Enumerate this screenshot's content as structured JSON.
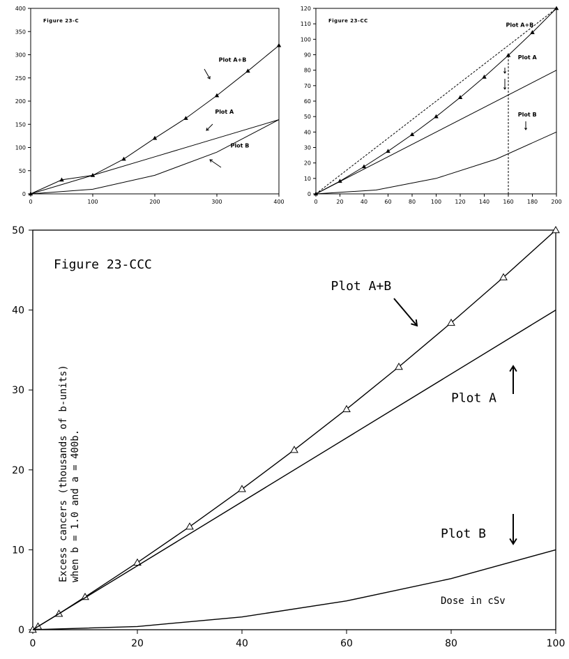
{
  "chart_data": [
    {
      "id": "c",
      "type": "line",
      "title": "Figure 23-C",
      "xlim": [
        0,
        400
      ],
      "ylim": [
        0,
        400
      ],
      "xticks": [
        0,
        100,
        200,
        300,
        400
      ],
      "yticks": [
        0,
        50,
        100,
        150,
        200,
        250,
        300,
        350,
        400
      ],
      "series": [
        {
          "name": "Plot A+B",
          "x": [
            0,
            50,
            100,
            150,
            200,
            250,
            300,
            350,
            400
          ],
          "y": [
            0,
            30.2,
            40,
            75,
            120,
            163,
            212,
            265,
            320
          ],
          "markers": true
        },
        {
          "name": "Plot A",
          "x": [
            0,
            100,
            200,
            300,
            400
          ],
          "y": [
            0,
            40,
            80,
            120,
            160
          ]
        },
        {
          "name": "Plot B",
          "x": [
            0,
            100,
            200,
            300,
            400
          ],
          "y": [
            0,
            10,
            40,
            90,
            160
          ]
        }
      ],
      "annotations": [
        {
          "text": "Plot A+B",
          "x": 303,
          "y": 285
        },
        {
          "text": "Plot A",
          "x": 297,
          "y": 173
        },
        {
          "text": "Plot B",
          "x": 322,
          "y": 100
        }
      ]
    },
    {
      "id": "cc",
      "type": "line",
      "title": "Figure 23-CC",
      "xlim": [
        0,
        200
      ],
      "ylim": [
        0,
        120
      ],
      "xticks": [
        0,
        20,
        40,
        60,
        80,
        100,
        120,
        140,
        160,
        180,
        200
      ],
      "yticks": [
        0,
        10,
        20,
        30,
        40,
        50,
        60,
        70,
        80,
        90,
        100,
        110,
        120
      ],
      "series": [
        {
          "name": "Plot A+B",
          "x": [
            0,
            20,
            40,
            60,
            80,
            100,
            120,
            140,
            160,
            180,
            200
          ],
          "y": [
            0,
            8.2,
            17.6,
            27.6,
            38.4,
            50,
            62.4,
            75.6,
            89.6,
            104.4,
            120
          ],
          "markers": true
        },
        {
          "name": "Plot A",
          "x": [
            0,
            200
          ],
          "y": [
            0,
            80
          ]
        },
        {
          "name": "Plot B",
          "x": [
            0,
            50,
            100,
            150,
            200
          ],
          "y": [
            0,
            2.5,
            10,
            22.5,
            40
          ]
        },
        {
          "name": "",
          "x": [
            0,
            200
          ],
          "y": [
            0,
            120
          ],
          "dashed": true
        },
        {
          "name": "",
          "x": [
            160,
            160
          ],
          "y": [
            0,
            89.6
          ],
          "dashed": true
        }
      ],
      "annotations": [
        {
          "text": "Plot A+B",
          "x": 158,
          "y": 108
        },
        {
          "text": "Plot A",
          "x": 168,
          "y": 87
        },
        {
          "text": "Plot B",
          "x": 168,
          "y": 50
        }
      ]
    },
    {
      "id": "ccc",
      "type": "line",
      "title": "Figure 23-CCC",
      "xlabel": "Dose in cSv",
      "ylabel": [
        "Excess cancers (thousands of b-units)",
        "when b = 1.0 and a = 400b."
      ],
      "xlim": [
        0,
        100
      ],
      "ylim": [
        0,
        50
      ],
      "xticks": [
        0,
        20,
        40,
        60,
        80,
        100
      ],
      "yticks": [
        0,
        10,
        20,
        30,
        40,
        50
      ],
      "series": [
        {
          "name": "Plot A+B",
          "x": [
            0,
            1,
            5,
            10,
            20,
            30,
            40,
            50,
            60,
            70,
            80,
            90,
            100
          ],
          "y": [
            0,
            0.4,
            2,
            4.1,
            8.4,
            12.9,
            17.6,
            22.5,
            27.6,
            32.9,
            38.4,
            44.1,
            50
          ],
          "markers": true
        },
        {
          "name": "Plot A",
          "x": [
            0,
            100
          ],
          "y": [
            0,
            40
          ]
        },
        {
          "name": "Plot B",
          "x": [
            0,
            20,
            40,
            60,
            80,
            100
          ],
          "y": [
            0,
            0.4,
            1.6,
            3.6,
            6.4,
            10
          ]
        }
      ],
      "annotations": [
        {
          "text": "Plot A+B",
          "x": 57,
          "y": 42.5
        },
        {
          "text": "Plot A",
          "x": 80,
          "y": 28.5
        },
        {
          "text": "Plot B",
          "x": 78,
          "y": 11.5
        }
      ]
    }
  ]
}
